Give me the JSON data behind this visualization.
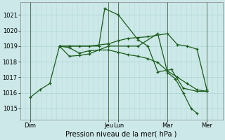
{
  "xlabel": "Pression niveau de la mer( hPa )",
  "bg_color": "#cce8e8",
  "grid_major_color": "#aad4d4",
  "grid_minor_color": "#bbdddd",
  "line_color": "#1a5c1a",
  "ylim": [
    1014.3,
    1021.8
  ],
  "yticks": [
    1015,
    1016,
    1017,
    1018,
    1019,
    1020,
    1021
  ],
  "day_labels": [
    "Dim",
    "Jeu",
    "Lun",
    "Mar",
    "Mer"
  ],
  "day_x": [
    0,
    4,
    4.5,
    7,
    9
  ],
  "xlim": [
    -0.5,
    9.8
  ],
  "series": [
    {
      "x": [
        0.0,
        0.5,
        1.0,
        1.5,
        2.0,
        3.5,
        3.8,
        4.5,
        5.5,
        6.0,
        6.5,
        7.2,
        7.8,
        8.5,
        9.0
      ],
      "y": [
        1015.7,
        1016.2,
        1016.6,
        1019.0,
        1019.0,
        1019.0,
        1021.4,
        1021.0,
        1019.4,
        1019.0,
        1017.35,
        1017.5,
        1016.3,
        1016.1,
        1016.1
      ]
    },
    {
      "x": [
        1.5,
        2.0,
        2.5,
        3.0,
        4.0,
        4.5,
        5.0,
        5.5,
        6.0,
        7.0,
        7.5,
        8.0,
        8.5,
        9.0
      ],
      "y": [
        1019.0,
        1019.0,
        1019.0,
        1019.0,
        1019.15,
        1019.35,
        1019.5,
        1019.55,
        1019.6,
        1019.8,
        1019.1,
        1019.0,
        1018.8,
        1016.2
      ]
    },
    {
      "x": [
        1.5,
        2.0,
        2.5,
        3.0,
        4.0,
        5.0,
        5.5,
        6.5,
        7.0,
        7.4,
        7.8,
        8.2,
        8.5
      ],
      "y": [
        1019.0,
        1018.35,
        1018.4,
        1018.5,
        1019.0,
        1019.0,
        1019.0,
        1019.8,
        1017.3,
        1016.9,
        1016.0,
        1015.0,
        1014.7
      ]
    },
    {
      "x": [
        1.5,
        2.0,
        2.5,
        3.0,
        3.5,
        4.0,
        4.5,
        5.0,
        5.5,
        6.0,
        6.5,
        7.0,
        7.5,
        8.0,
        8.5,
        9.0
      ],
      "y": [
        1019.0,
        1018.9,
        1018.55,
        1018.7,
        1018.75,
        1018.75,
        1018.6,
        1018.45,
        1018.35,
        1018.2,
        1017.95,
        1017.4,
        1017.0,
        1016.6,
        1016.2,
        1016.1
      ]
    }
  ]
}
